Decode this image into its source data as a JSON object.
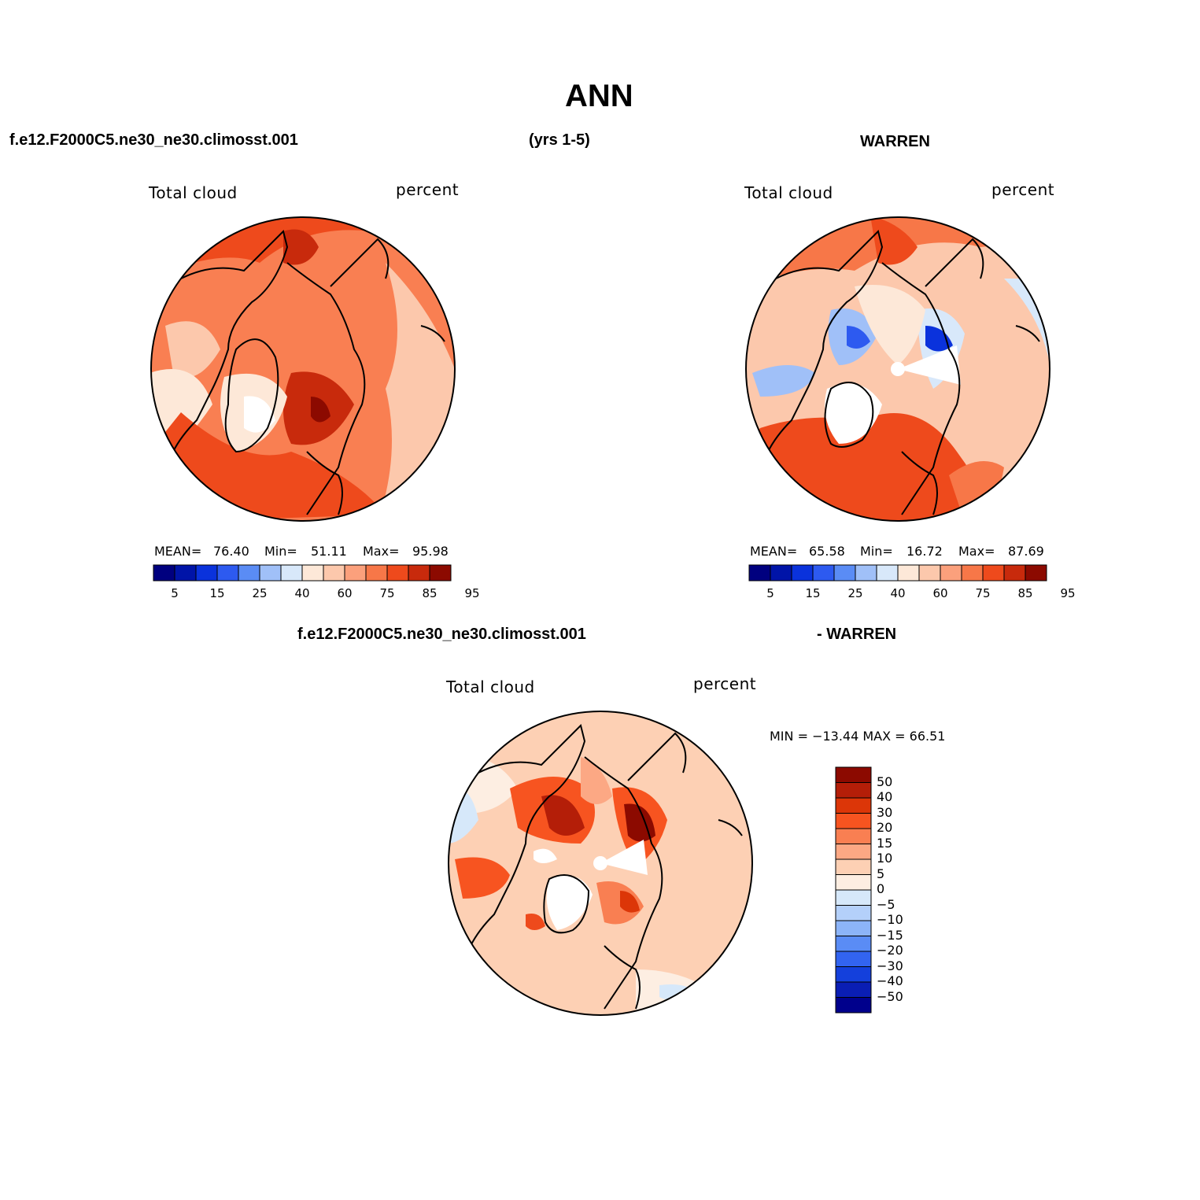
{
  "title": "ANN",
  "header": {
    "case": "f.e12.F2000C5.ne30_ne30.climosst.001",
    "years": "(yrs 1-5)",
    "obs": "WARREN"
  },
  "diff_header": {
    "case": "f.e12.F2000C5.ne30_ne30.climosst.001",
    "obs": "- WARREN"
  },
  "panels": [
    {
      "variable": "Total cloud",
      "units": "percent",
      "stats": {
        "mean_label": "MEAN=",
        "mean": "76.40",
        "min_label": "Min=",
        "min": "51.11",
        "max_label": "Max=",
        "max": "95.98"
      }
    },
    {
      "variable": "Total cloud",
      "units": "percent",
      "stats": {
        "mean_label": "MEAN=",
        "mean": "65.58",
        "min_label": "Min=",
        "min": "16.72",
        "max_label": "Max=",
        "max": "87.69"
      }
    }
  ],
  "diff_panel": {
    "variable": "Total cloud",
    "units": "percent",
    "minmax": "MIN = −13.44  MAX =   66.51"
  },
  "colorbar_horizontal": {
    "colors": [
      "#00007f",
      "#0014a8",
      "#0a32dc",
      "#2d5af0",
      "#5a8cf5",
      "#a0c0f8",
      "#d8e8fa",
      "#fde8d8",
      "#fcc8ac",
      "#fba07c",
      "#f77748",
      "#ee4a1c",
      "#c82a0c",
      "#8c0a00"
    ],
    "tick_labels": [
      "5",
      "15",
      "25",
      "40",
      "60",
      "75",
      "85",
      "95"
    ]
  },
  "colorbar_vertical": {
    "colors": [
      "#8c0a00",
      "#b41e08",
      "#dc3608",
      "#f75420",
      "#f97f52",
      "#fca884",
      "#fdd0b4",
      "#fdeee2",
      "#d6e8fa",
      "#b4d0fa",
      "#8cb4f8",
      "#5a8cf5",
      "#3264f0",
      "#1440dc",
      "#0a1eb4",
      "#00008c"
    ],
    "tick_labels": [
      "50",
      "40",
      "30",
      "20",
      "15",
      "10",
      "5",
      "0",
      "−5",
      "−10",
      "−15",
      "−20",
      "−30",
      "−40",
      "−50"
    ]
  }
}
